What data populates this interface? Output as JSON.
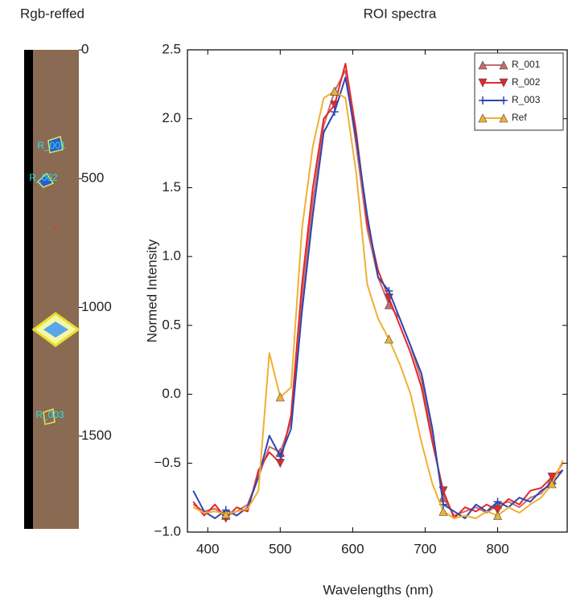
{
  "chart_data": [
    {
      "type": "image",
      "title": "Rgb-reffed",
      "ylim": [
        0,
        1860
      ],
      "yticks": [
        0,
        500,
        1000,
        1500
      ],
      "annotations": [
        "R_001",
        "R_002",
        "R_003"
      ]
    },
    {
      "type": "line",
      "title": "ROI spectra",
      "xlabel": "Wavelengths (nm)",
      "ylabel": "Normed Intensity",
      "xlim": [
        372,
        896
      ],
      "xticks": [
        400,
        500,
        600,
        700,
        800
      ],
      "ylim": [
        -1,
        2.5
      ],
      "yticks": [
        {
          "value": -1,
          "label": "−1.0"
        },
        {
          "value": -0.5,
          "label": "−0.5"
        },
        {
          "value": 0,
          "label": "0.0"
        },
        0.5,
        {
          "value": 1,
          "label": "1.0"
        },
        1.5,
        {
          "value": 2,
          "label": "2.0"
        },
        2.5
      ],
      "legend": "upper right",
      "x": [
        380,
        395,
        410,
        425,
        440,
        455,
        470,
        485,
        500,
        515,
        530,
        545,
        560,
        575,
        590,
        605,
        620,
        635,
        650,
        665,
        680,
        695,
        710,
        725,
        740,
        755,
        770,
        785,
        800,
        815,
        830,
        845,
        860,
        875,
        890
      ],
      "series": [
        {
          "name": "R_001",
          "color": "#c86a6a",
          "marker": "^",
          "values": [
            -0.8,
            -0.85,
            -0.83,
            -0.88,
            -0.85,
            -0.8,
            -0.6,
            -0.38,
            -0.42,
            -0.2,
            0.7,
            1.4,
            1.95,
            2.2,
            2.35,
            1.8,
            1.2,
            0.85,
            0.65,
            0.55,
            0.35,
            0.1,
            -0.3,
            -0.75,
            -0.88,
            -0.85,
            -0.82,
            -0.86,
            -0.8,
            -0.78,
            -0.82,
            -0.75,
            -0.72,
            -0.62,
            -0.5
          ]
        },
        {
          "name": "R_002",
          "color": "#e5282a",
          "marker": "v",
          "values": [
            -0.78,
            -0.88,
            -0.8,
            -0.9,
            -0.82,
            -0.85,
            -0.55,
            -0.42,
            -0.5,
            -0.15,
            0.8,
            1.5,
            2.0,
            2.1,
            2.4,
            1.9,
            1.25,
            0.9,
            0.7,
            0.5,
            0.3,
            0.05,
            -0.35,
            -0.7,
            -0.9,
            -0.82,
            -0.85,
            -0.8,
            -0.84,
            -0.76,
            -0.8,
            -0.7,
            -0.68,
            -0.6,
            -0.55
          ]
        },
        {
          "name": "R_003",
          "color": "#2b47b3",
          "marker": "+",
          "values": [
            -0.7,
            -0.85,
            -0.9,
            -0.84,
            -0.88,
            -0.82,
            -0.6,
            -0.3,
            -0.45,
            -0.25,
            0.6,
            1.3,
            1.9,
            2.05,
            2.3,
            1.85,
            1.3,
            0.85,
            0.75,
            0.55,
            0.35,
            0.15,
            -0.25,
            -0.8,
            -0.85,
            -0.9,
            -0.8,
            -0.85,
            -0.78,
            -0.82,
            -0.75,
            -0.78,
            -0.7,
            -0.65,
            -0.55
          ]
        },
        {
          "name": "Ref",
          "color": "#f0b030",
          "marker": "^",
          "values": [
            -0.82,
            -0.86,
            -0.85,
            -0.87,
            -0.85,
            -0.83,
            -0.7,
            0.3,
            -0.02,
            0.05,
            1.2,
            1.8,
            2.15,
            2.2,
            2.15,
            1.6,
            0.8,
            0.55,
            0.4,
            0.22,
            0.0,
            -0.35,
            -0.65,
            -0.85,
            -0.9,
            -0.88,
            -0.9,
            -0.85,
            -0.88,
            -0.82,
            -0.86,
            -0.8,
            -0.75,
            -0.65,
            -0.48
          ]
        }
      ]
    }
  ]
}
